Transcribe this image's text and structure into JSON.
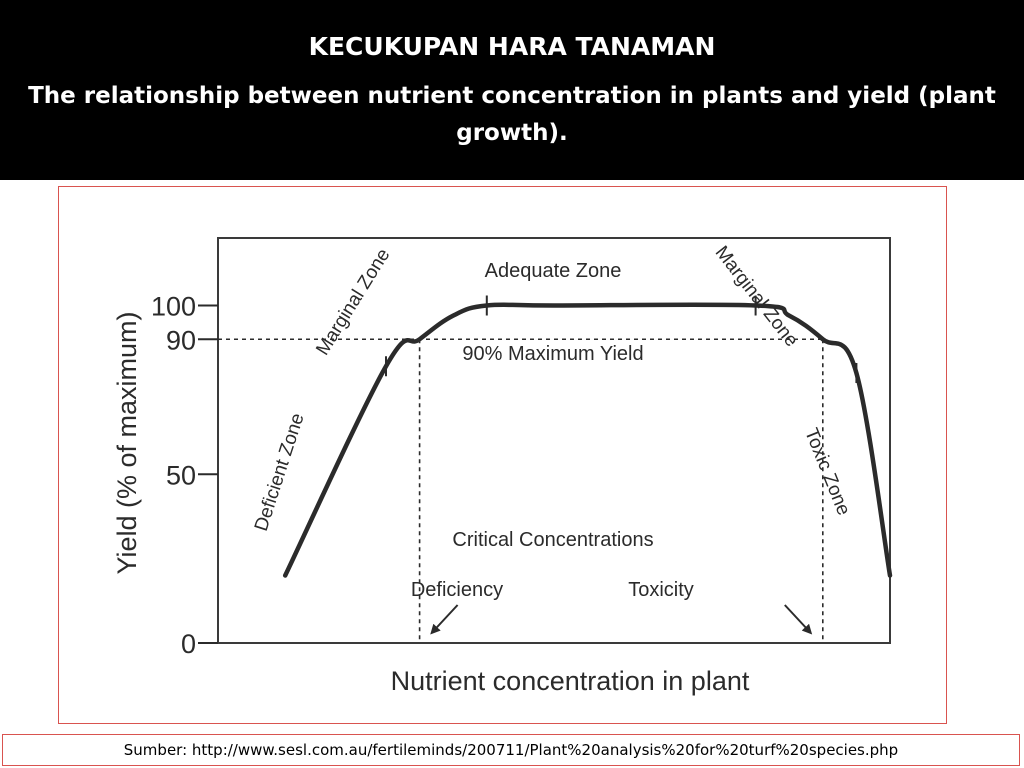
{
  "slide": {
    "title": "KECUKUPAN HARA TANAMAN",
    "subtitle": "The relationship between nutrient concentration in plants and yield (plant growth).",
    "source": "Sumber: http://www.sesl.com.au/fertileminds/200711/Plant%20analysis%20for%20turf%20species.php"
  },
  "colors": {
    "header_bg": "#000000",
    "header_text": "#ffffff",
    "frame_border": "#d9534f",
    "chart_ink": "#2b2b2b"
  },
  "chart_data": {
    "type": "line",
    "title": "",
    "xlabel": "Nutrient concentration in plant",
    "ylabel": "Yield (% of maximum)",
    "y_ticks": [
      0,
      50,
      90,
      100
    ],
    "y_tick_labels": [
      "0",
      "50",
      "90",
      "100"
    ],
    "ylim": [
      0,
      120
    ],
    "xlim": [
      0,
      100
    ],
    "grid": false,
    "legend": "none",
    "x_scale": "relative, unlabeled",
    "series": [
      {
        "x": [
          10,
          25,
          30,
          35,
          40,
          50,
          80,
          85,
          90,
          95,
          100
        ],
        "y": [
          20,
          82,
          90,
          97,
          100,
          100,
          100,
          97,
          90,
          80,
          20
        ]
      }
    ],
    "threshold_line": {
      "y": 90,
      "label": "90% Maximum Yield"
    },
    "critical_concentrations": {
      "label": "Critical Concentrations",
      "deficiency": {
        "label": "Deficiency",
        "x": 30
      },
      "toxicity": {
        "label": "Toxicity",
        "x": 90
      }
    },
    "zones": [
      {
        "name": "Deficient Zone",
        "x_range": [
          10,
          25
        ]
      },
      {
        "name": "Marginal Zone",
        "x_range": [
          25,
          40
        ]
      },
      {
        "name": "Adequate Zone",
        "x_range": [
          40,
          80
        ]
      },
      {
        "name": "Marginal Zone",
        "x_range": [
          80,
          95
        ]
      },
      {
        "name": "Toxic Zone",
        "x_range": [
          95,
          100
        ]
      }
    ],
    "zone_boundaries_x": [
      25,
      40,
      80,
      95
    ]
  }
}
